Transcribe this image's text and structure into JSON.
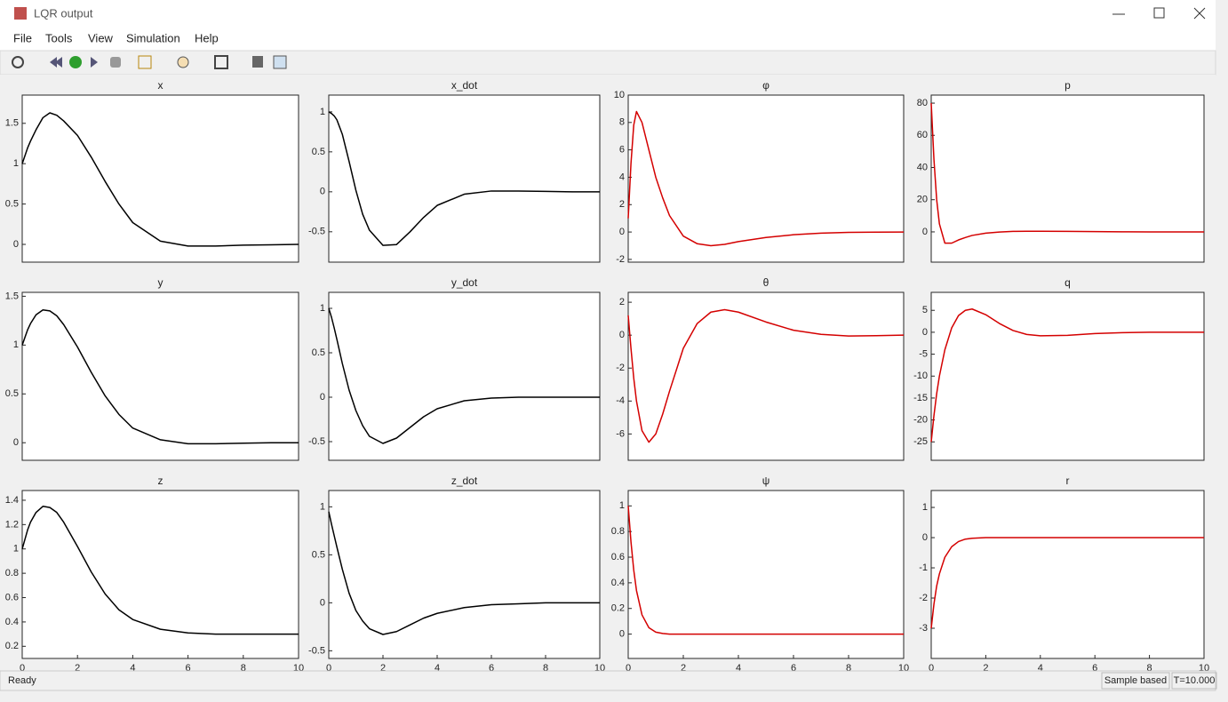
{
  "window": {
    "title": "LQR output",
    "menu": [
      "File",
      "Tools",
      "View",
      "Simulation",
      "Help"
    ],
    "status": "Ready",
    "status_mode": "Sample based",
    "status_time": "T=10.000"
  },
  "chart_data": [
    {
      "type": "line",
      "title": "x",
      "x": [
        0,
        0.1,
        0.2,
        0.3,
        0.5,
        0.75,
        1,
        1.25,
        1.5,
        2,
        2.5,
        3,
        3.5,
        4,
        5,
        6,
        7,
        8,
        9,
        10
      ],
      "series": [
        {
          "color": "#000000",
          "values": [
            1,
            1.1,
            1.2,
            1.28,
            1.42,
            1.57,
            1.63,
            1.6,
            1.53,
            1.35,
            1.08,
            0.78,
            0.5,
            0.27,
            0.04,
            -0.02,
            -0.02,
            -0.01,
            -0.005,
            0
          ]
        }
      ],
      "xlim": [
        0,
        10
      ],
      "ylim": [
        -0.22,
        1.85
      ],
      "yticks": [
        0,
        0.5,
        1,
        1.5
      ]
    },
    {
      "type": "line",
      "title": "x_dot",
      "x": [
        0,
        0.1,
        0.2,
        0.3,
        0.5,
        0.75,
        1,
        1.25,
        1.5,
        2,
        2.5,
        3,
        3.5,
        4,
        5,
        6,
        7,
        8,
        9,
        10
      ],
      "series": [
        {
          "color": "#000000",
          "values": [
            1,
            0.98,
            0.95,
            0.9,
            0.72,
            0.38,
            0.02,
            -0.28,
            -0.48,
            -0.67,
            -0.66,
            -0.5,
            -0.32,
            -0.17,
            -0.03,
            0.01,
            0.01,
            0.005,
            0,
            0
          ]
        }
      ],
      "xlim": [
        0,
        10
      ],
      "ylim": [
        -0.88,
        1.21
      ],
      "yticks": [
        -0.5,
        0,
        0.5,
        1
      ]
    },
    {
      "type": "line",
      "title": "φ",
      "x": [
        0,
        0.1,
        0.2,
        0.3,
        0.5,
        0.75,
        1,
        1.25,
        1.5,
        2,
        2.5,
        3,
        3.5,
        4,
        5,
        6,
        7,
        8,
        9,
        10
      ],
      "series": [
        {
          "color": "#d40000",
          "values": [
            1,
            5,
            7.8,
            8.8,
            8,
            6,
            4,
            2.5,
            1.2,
            -0.3,
            -0.85,
            -1,
            -0.9,
            -0.7,
            -0.4,
            -0.2,
            -0.08,
            -0.03,
            -0.01,
            0
          ]
        }
      ],
      "xlim": [
        0,
        10
      ],
      "ylim": [
        -2.2,
        10
      ],
      "yticks": [
        -2,
        0,
        2,
        4,
        6,
        8,
        10
      ]
    },
    {
      "type": "line",
      "title": "p",
      "x": [
        0,
        0.1,
        0.2,
        0.3,
        0.5,
        0.75,
        1,
        1.25,
        1.5,
        2,
        2.5,
        3,
        3.5,
        4,
        5,
        6,
        7,
        8,
        9,
        10
      ],
      "series": [
        {
          "color": "#d40000",
          "values": [
            80,
            45,
            20,
            5,
            -7,
            -7,
            -5,
            -3.5,
            -2.2,
            -0.8,
            -0.1,
            0.3,
            0.4,
            0.4,
            0.3,
            0.15,
            0.05,
            0,
            0,
            0
          ]
        }
      ],
      "xlim": [
        0,
        10
      ],
      "ylim": [
        -18.8,
        85
      ],
      "yticks": [
        0,
        20,
        40,
        60,
        80
      ]
    },
    {
      "type": "line",
      "title": "y",
      "x": [
        0,
        0.1,
        0.2,
        0.3,
        0.5,
        0.75,
        1,
        1.25,
        1.5,
        2,
        2.5,
        3,
        3.5,
        4,
        5,
        6,
        7,
        8,
        9,
        10
      ],
      "series": [
        {
          "color": "#000000",
          "values": [
            1,
            1.08,
            1.16,
            1.22,
            1.31,
            1.36,
            1.35,
            1.3,
            1.21,
            0.98,
            0.72,
            0.48,
            0.29,
            0.15,
            0.03,
            -0.01,
            -0.01,
            -0.005,
            0,
            0
          ]
        }
      ],
      "xlim": [
        0,
        10
      ],
      "ylim": [
        -0.18,
        1.54
      ],
      "yticks": [
        0,
        0.5,
        1,
        1.5
      ]
    },
    {
      "type": "line",
      "title": "y_dot",
      "x": [
        0,
        0.1,
        0.2,
        0.3,
        0.5,
        0.75,
        1,
        1.25,
        1.5,
        2,
        2.5,
        3,
        3.5,
        4,
        5,
        6,
        7,
        8,
        9,
        10
      ],
      "series": [
        {
          "color": "#000000",
          "values": [
            1,
            0.9,
            0.78,
            0.65,
            0.38,
            0.08,
            -0.15,
            -0.32,
            -0.44,
            -0.52,
            -0.46,
            -0.34,
            -0.22,
            -0.13,
            -0.04,
            -0.01,
            0,
            0,
            0,
            0
          ]
        }
      ],
      "xlim": [
        0,
        10
      ],
      "ylim": [
        -0.71,
        1.18
      ],
      "yticks": [
        -0.5,
        0,
        0.5,
        1
      ]
    },
    {
      "type": "line",
      "title": "θ",
      "x": [
        0,
        0.1,
        0.2,
        0.3,
        0.5,
        0.75,
        1,
        1.25,
        1.5,
        2,
        2.5,
        3,
        3.5,
        4,
        5,
        6,
        7,
        8,
        9,
        10
      ],
      "series": [
        {
          "color": "#d40000",
          "values": [
            1.2,
            -0.8,
            -2.6,
            -4,
            -5.8,
            -6.5,
            -6,
            -4.8,
            -3.4,
            -0.8,
            0.7,
            1.4,
            1.55,
            1.4,
            0.8,
            0.3,
            0.05,
            -0.05,
            -0.03,
            0
          ]
        }
      ],
      "xlim": [
        0,
        10
      ],
      "ylim": [
        -7.6,
        2.6
      ],
      "yticks": [
        -6,
        -4,
        -2,
        0,
        2
      ]
    },
    {
      "type": "line",
      "title": "q",
      "x": [
        0,
        0.1,
        0.2,
        0.3,
        0.5,
        0.75,
        1,
        1.25,
        1.5,
        2,
        2.5,
        3,
        3.5,
        4,
        5,
        6,
        7,
        8,
        9,
        10
      ],
      "series": [
        {
          "color": "#d40000",
          "values": [
            -25,
            -19,
            -14,
            -10,
            -4,
            1,
            3.8,
            5,
            5.3,
            4,
            2,
            0.4,
            -0.5,
            -0.8,
            -0.7,
            -0.3,
            -0.1,
            0,
            0,
            0
          ]
        }
      ],
      "xlim": [
        0,
        10
      ],
      "ylim": [
        -29.2,
        9.1
      ],
      "yticks": [
        -25,
        -20,
        -15,
        -10,
        -5,
        0,
        5
      ]
    },
    {
      "type": "line",
      "title": "z",
      "x": [
        0,
        0.1,
        0.2,
        0.3,
        0.5,
        0.75,
        1,
        1.25,
        1.5,
        2,
        2.5,
        3,
        3.5,
        4,
        5,
        6,
        7,
        8,
        9,
        10
      ],
      "series": [
        {
          "color": "#000000",
          "values": [
            1,
            1.08,
            1.16,
            1.22,
            1.3,
            1.35,
            1.34,
            1.3,
            1.22,
            1.02,
            0.81,
            0.63,
            0.5,
            0.42,
            0.34,
            0.31,
            0.3,
            0.3,
            0.3,
            0.3
          ]
        }
      ],
      "xlim": [
        0,
        10
      ],
      "ylim": [
        0.1,
        1.48
      ],
      "yticks": [
        0.2,
        0.4,
        0.6,
        0.8,
        1,
        1.2,
        1.4
      ],
      "xticks": [
        0,
        2,
        4,
        6,
        8,
        10
      ]
    },
    {
      "type": "line",
      "title": "z_dot",
      "x": [
        0,
        0.1,
        0.2,
        0.3,
        0.5,
        0.75,
        1,
        1.25,
        1.5,
        2,
        2.5,
        3,
        3.5,
        4,
        5,
        6,
        7,
        8,
        9,
        10
      ],
      "series": [
        {
          "color": "#000000",
          "values": [
            0.95,
            0.82,
            0.7,
            0.58,
            0.35,
            0.1,
            -0.08,
            -0.19,
            -0.27,
            -0.33,
            -0.3,
            -0.23,
            -0.16,
            -0.11,
            -0.05,
            -0.02,
            -0.01,
            0,
            0,
            0
          ]
        }
      ],
      "xlim": [
        0,
        10
      ],
      "ylim": [
        -0.58,
        1.17
      ],
      "yticks": [
        -0.5,
        0,
        0.5,
        1
      ],
      "xticks": [
        0,
        2,
        4,
        6,
        8,
        10
      ]
    },
    {
      "type": "line",
      "title": "ψ",
      "x": [
        0,
        0.1,
        0.2,
        0.3,
        0.5,
        0.75,
        1,
        1.25,
        1.5,
        2,
        2.5,
        3,
        3.5,
        4,
        5,
        6,
        7,
        8,
        9,
        10
      ],
      "series": [
        {
          "color": "#d40000",
          "values": [
            1,
            0.72,
            0.5,
            0.34,
            0.15,
            0.05,
            0.015,
            0.005,
            0,
            0,
            0,
            0,
            0,
            0,
            0,
            0,
            0,
            0,
            0,
            0
          ]
        }
      ],
      "xlim": [
        0,
        10
      ],
      "ylim": [
        -0.19,
        1.12
      ],
      "yticks": [
        0,
        0.2,
        0.4,
        0.6,
        0.8,
        1
      ],
      "xticks": [
        0,
        2,
        4,
        6,
        8,
        10
      ]
    },
    {
      "type": "line",
      "title": "r",
      "x": [
        0,
        0.1,
        0.2,
        0.3,
        0.5,
        0.75,
        1,
        1.25,
        1.5,
        2,
        2.5,
        3,
        3.5,
        4,
        5,
        6,
        7,
        8,
        9,
        10
      ],
      "series": [
        {
          "color": "#d40000",
          "values": [
            -3,
            -2.2,
            -1.6,
            -1.2,
            -0.65,
            -0.3,
            -0.13,
            -0.05,
            -0.02,
            0,
            0,
            0,
            0,
            0,
            0,
            0,
            0,
            0,
            0,
            0
          ]
        }
      ],
      "xlim": [
        0,
        10
      ],
      "ylim": [
        -4,
        1.56
      ],
      "yticks": [
        -3,
        -2,
        -1,
        0,
        1
      ],
      "xticks": [
        0,
        2,
        4,
        6,
        8,
        10
      ]
    }
  ]
}
